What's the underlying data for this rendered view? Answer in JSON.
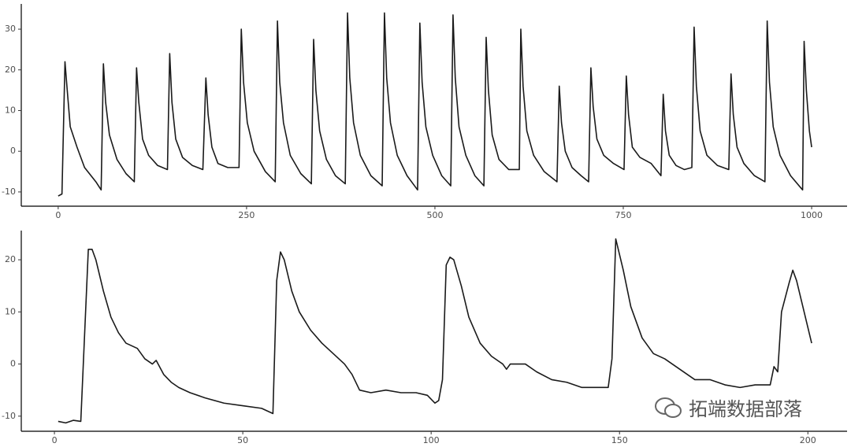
{
  "chart_data": [
    {
      "type": "line",
      "x": [
        0,
        5,
        9,
        12,
        16,
        25,
        35,
        50,
        57,
        60,
        63,
        68,
        78,
        90,
        101,
        104,
        107,
        112,
        120,
        132,
        145,
        148,
        151,
        156,
        165,
        178,
        192,
        196,
        199,
        204,
        212,
        225,
        240,
        243,
        246,
        251,
        260,
        275,
        288,
        291,
        294,
        299,
        308,
        322,
        336,
        339,
        342,
        347,
        356,
        368,
        381,
        384,
        387,
        392,
        401,
        415,
        430,
        433,
        436,
        441,
        450,
        463,
        477,
        480,
        483,
        488,
        497,
        509,
        521,
        524,
        527,
        532,
        541,
        553,
        565,
        568,
        571,
        576,
        585,
        598,
        612,
        614,
        617,
        622,
        631,
        645,
        662,
        665,
        668,
        673,
        682,
        694,
        704,
        707,
        710,
        715,
        724,
        737,
        751,
        754,
        757,
        762,
        772,
        787,
        800,
        803,
        806,
        811,
        820,
        831,
        841,
        844,
        847,
        852,
        861,
        875,
        890,
        893,
        896,
        901,
        910,
        924,
        938,
        941,
        944,
        949,
        958,
        972,
        988,
        990,
        993,
        997,
        1000
      ],
      "series": [
        {
          "color": "#1a1a1a",
          "values": [
            -11,
            -10.5,
            22,
            15,
            6,
            1,
            -4,
            -7.5,
            -9.5,
            21.5,
            12,
            4,
            -2,
            -5.5,
            -7.5,
            20.5,
            12,
            3,
            -1,
            -3.5,
            -4.5,
            24,
            12,
            3,
            -1.5,
            -3.5,
            -4.5,
            18,
            9,
            1,
            -3,
            -4,
            -4,
            30,
            17,
            7,
            0,
            -5,
            -7.5,
            32,
            17,
            7,
            -1,
            -5.5,
            -8,
            27.5,
            15,
            5,
            -2,
            -6,
            -8,
            34,
            18,
            7,
            -1,
            -6,
            -8.5,
            34,
            18,
            7,
            -1,
            -6,
            -9.5,
            31.5,
            17,
            6,
            -1,
            -6,
            -8.5,
            33.5,
            18,
            6,
            -1,
            -6,
            -8.5,
            28,
            15,
            4,
            -2,
            -4.5,
            -4.5,
            30,
            16,
            5,
            -1,
            -5,
            -7.5,
            16,
            7,
            0,
            -4,
            -6,
            -7.5,
            20.5,
            11,
            3,
            -1,
            -3,
            -4.5,
            18.5,
            9,
            1,
            -1.5,
            -3,
            -6,
            14,
            5,
            -1,
            -3.5,
            -4.5,
            -4,
            30.5,
            16,
            5,
            -1,
            -3.5,
            -4.5,
            19,
            9,
            1,
            -3,
            -6,
            -7.5,
            32,
            17,
            6,
            -1,
            -6,
            -9.5,
            27,
            15,
            5,
            1
          ]
        }
      ],
      "xlim": [
        -49,
        1047
      ],
      "ylim": [
        -13.5,
        36.2
      ],
      "xticks": [
        0,
        250,
        500,
        750,
        1000
      ],
      "yticks": [
        -10,
        0,
        10,
        20,
        30
      ]
    },
    {
      "type": "line",
      "x": [
        1,
        3,
        5,
        7,
        9,
        10,
        11,
        13,
        15,
        17,
        19,
        22,
        24,
        26,
        27,
        29,
        31,
        33,
        36,
        40,
        45,
        50,
        55,
        58,
        59,
        60,
        61,
        63,
        65,
        68,
        71,
        74,
        77,
        79,
        81,
        84,
        88,
        92,
        96,
        99,
        101,
        102,
        103,
        104,
        105,
        106,
        108,
        110,
        113,
        116,
        119,
        120,
        121,
        125,
        128,
        132,
        136,
        140,
        145,
        147,
        148,
        149,
        151,
        153,
        156,
        159,
        162,
        166,
        170,
        174,
        178,
        182,
        186,
        190,
        191,
        192,
        193,
        195,
        196,
        197,
        199,
        200,
        201
      ],
      "series": [
        {
          "color": "#1a1a1a",
          "values": [
            -11,
            -11.3,
            -10.8,
            -11,
            22,
            22,
            20,
            14,
            9,
            6,
            4,
            3,
            1,
            0,
            0.7,
            -2,
            -3.5,
            -4.5,
            -5.5,
            -6.5,
            -7.5,
            -8,
            -8.5,
            -9.5,
            16,
            21.5,
            20,
            14,
            10,
            6.5,
            4,
            2,
            0,
            -2,
            -5,
            -5.5,
            -5,
            -5.5,
            -5.5,
            -6,
            -7.5,
            -7,
            -3,
            19,
            20.5,
            20,
            15,
            9,
            4,
            1.5,
            0,
            -1,
            0,
            0,
            -1.5,
            -3,
            -3.5,
            -4.5,
            -4.5,
            -4.5,
            1,
            24,
            18,
            11,
            5,
            2,
            1,
            -1,
            -3,
            -3,
            -4,
            -4.5,
            -4,
            -4,
            -0.5,
            -1.5,
            10,
            15.5,
            18,
            16,
            10,
            7,
            4
          ]
        }
      ],
      "xlim": [
        -8.8,
        210.4
      ],
      "ylim": [
        -12.9,
        25.6
      ],
      "xticks": [
        0,
        50,
        100,
        150,
        200
      ],
      "yticks": [
        -10,
        0,
        10,
        20
      ]
    }
  ],
  "watermark": "拓端数据部落"
}
